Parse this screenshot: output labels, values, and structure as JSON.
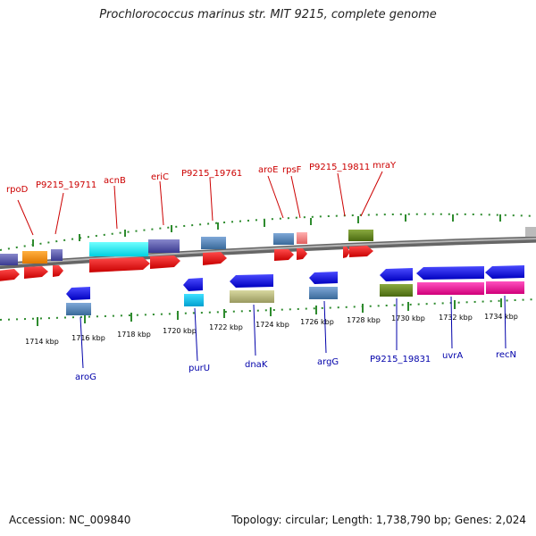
{
  "title": "Prochlorococcus marinus str. MIT 9215, complete genome",
  "footer": {
    "accession": "Accession: NC_009840",
    "topology": "Topology: circular; Length: 1,738,790 bp; Genes: 2,024"
  },
  "scale_ticks": [
    "1714 kbp",
    "1716 kbp",
    "1718 kbp",
    "1720 kbp",
    "1722 kbp",
    "1724 kbp",
    "1726 kbp",
    "1728 kbp",
    "1730 kbp",
    "1732 kbp",
    "1734 kbp"
  ],
  "genes_top": [
    "rpoD",
    "P9215_19711",
    "acnB",
    "eriC",
    "P9215_19761",
    "aroE",
    "rpsF",
    "P9215_19811",
    "mraY"
  ],
  "genes_bottom": [
    "aroG",
    "purU",
    "dnaK",
    "argG",
    "P9215_19831",
    "uvrA",
    "recN"
  ],
  "colors": {
    "forward_strand": "#ff0000",
    "reverse_strand": "#0000ee",
    "tick": "#2e8b2e",
    "backbone": "#808080"
  }
}
